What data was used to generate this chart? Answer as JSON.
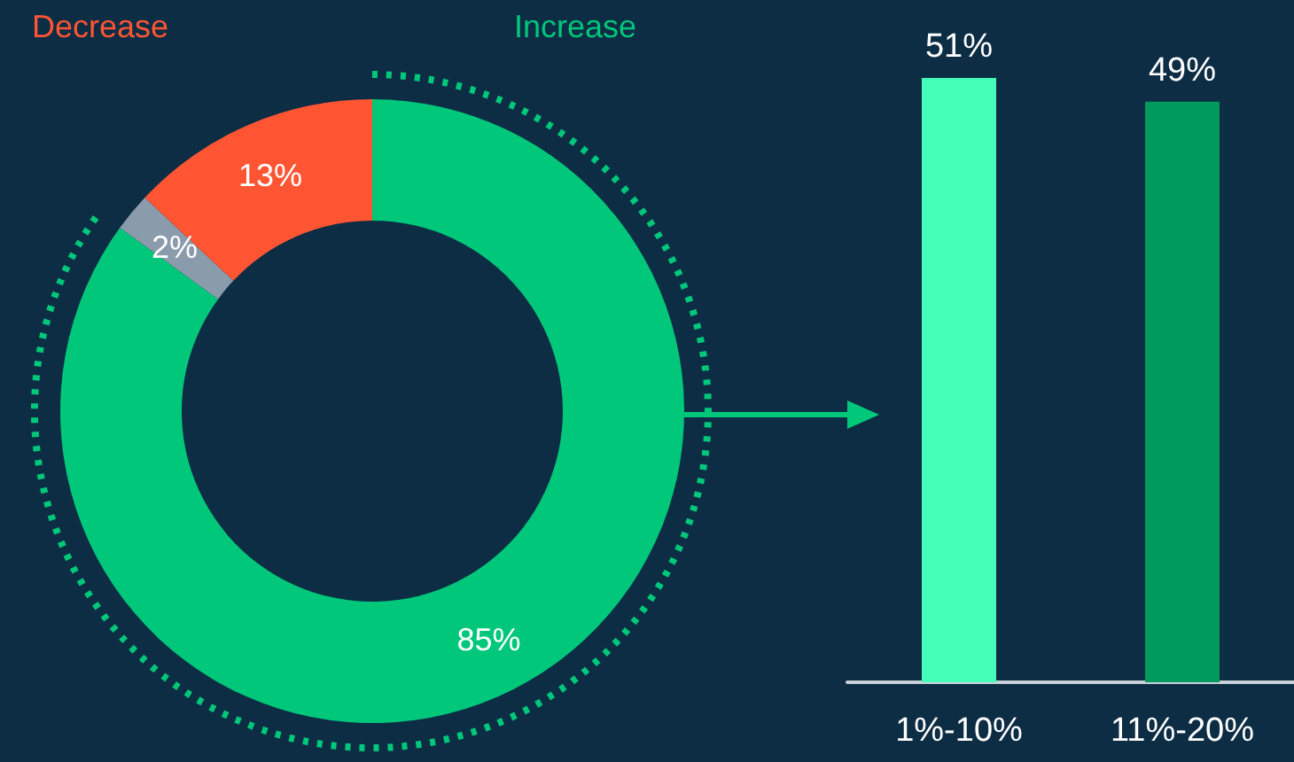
{
  "chart_data": [
    {
      "type": "donut",
      "categories": [
        "Increase",
        null,
        "Decrease"
      ],
      "values": [
        85,
        2,
        13
      ],
      "colors": [
        "#00c77a",
        "#8a9bab",
        "#ff5533"
      ],
      "value_labels": [
        "85%",
        "2%",
        "13%"
      ]
    },
    {
      "type": "bar",
      "categories": [
        "1%-10%",
        "11%-20%"
      ],
      "values": [
        51,
        49
      ],
      "colors": [
        "#45ffb8",
        "#009a5e"
      ],
      "value_labels": [
        "51%",
        "49%"
      ]
    }
  ]
}
